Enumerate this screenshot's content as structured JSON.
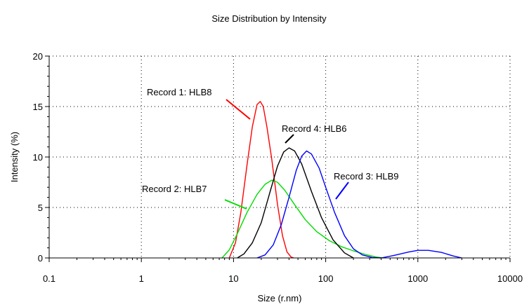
{
  "chart_data": {
    "type": "line",
    "title": "Size Distribution by Intensity",
    "xlabel": "Size (r.nm)",
    "ylabel": "Intensity (%)",
    "xscale": "log",
    "xlim": [
      0.1,
      10000
    ],
    "ylim": [
      0,
      20
    ],
    "xticks": [
      0.1,
      1,
      10,
      100,
      1000,
      10000
    ],
    "xtick_labels": [
      "0.1",
      "1",
      "10",
      "100",
      "1000",
      "10000"
    ],
    "yticks": [
      0,
      5,
      10,
      15,
      20
    ],
    "ytick_labels": [
      "0",
      "5",
      "10",
      "15",
      "20"
    ],
    "grid": true,
    "legend": "none",
    "series": [
      {
        "name": "Record 1: HLB8",
        "color": "#ff0000",
        "x": [
          9,
          10.5,
          12,
          14,
          16,
          18,
          19.5,
          21,
          23,
          26,
          30,
          34,
          38,
          42,
          45
        ],
        "y": [
          0,
          1.5,
          4.5,
          9.2,
          13,
          15.2,
          15.5,
          15,
          13,
          9.8,
          5.3,
          2.2,
          0.6,
          0.1,
          0
        ]
      },
      {
        "name": "Record 2: HLB7",
        "color": "#00dd00",
        "x": [
          7.5,
          9,
          11,
          14,
          18,
          22,
          26,
          30,
          36,
          45,
          60,
          80,
          110,
          150,
          200,
          270,
          350,
          420
        ],
        "y": [
          0,
          0.8,
          2.4,
          4.5,
          6.3,
          7.3,
          7.7,
          7.5,
          6.7,
          5.4,
          3.8,
          2.6,
          1.7,
          1.1,
          0.7,
          0.35,
          0.1,
          0
        ]
      },
      {
        "name": "Record 4: HLB6",
        "color": "#000000",
        "x": [
          11,
          13,
          16,
          20,
          25,
          30,
          35,
          40,
          46,
          55,
          70,
          90,
          120,
          160,
          200
        ],
        "y": [
          0,
          0.4,
          1.5,
          3.5,
          6.6,
          9.1,
          10.5,
          10.9,
          10.6,
          9.3,
          6.6,
          4,
          1.8,
          0.5,
          0
        ]
      },
      {
        "name": "Record 3: HLB9",
        "color": "#0000ff",
        "x": [
          18,
          22,
          27,
          33,
          40,
          48,
          55,
          62,
          70,
          85,
          100,
          125,
          160,
          200,
          250,
          320,
          400,
          550,
          800,
          1000,
          1300,
          1800,
          2400,
          3000
        ],
        "y": [
          0,
          0.3,
          1.3,
          3.3,
          6,
          8.7,
          10.1,
          10.6,
          10.3,
          8.9,
          7,
          4.5,
          2.2,
          0.9,
          0.3,
          0.05,
          0,
          0.25,
          0.6,
          0.75,
          0.75,
          0.55,
          0.2,
          0
        ]
      }
    ],
    "annotations": [
      {
        "text": "Record 1: HLB8",
        "color": "#ff0000"
      },
      {
        "text": "Record 4: HLB6",
        "color": "#000000"
      },
      {
        "text": "Record 3: HLB9",
        "color": "#0000ff"
      },
      {
        "text": "Record 2: HLB7",
        "color": "#00dd00"
      }
    ]
  }
}
